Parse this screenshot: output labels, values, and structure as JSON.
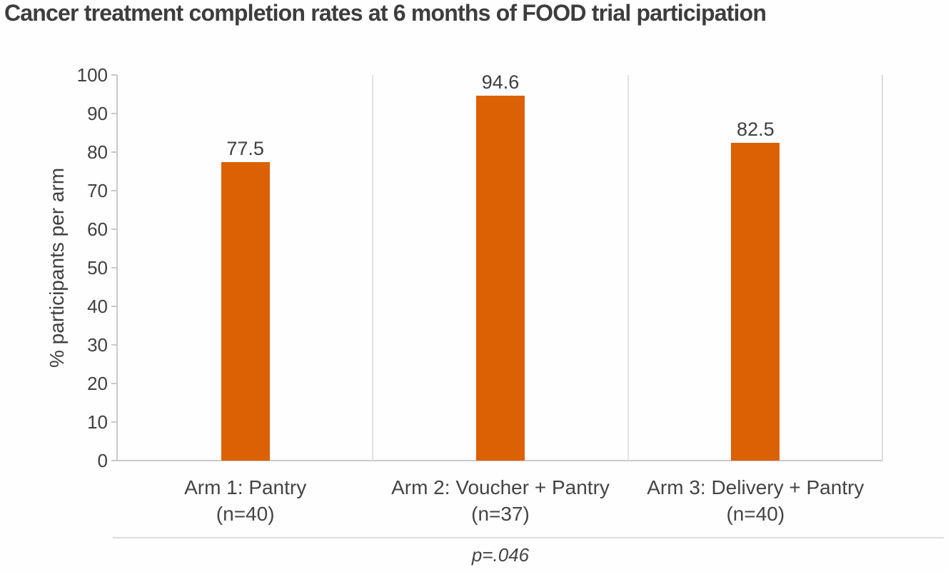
{
  "title": "Cancer treatment completion rates at 6 months of FOOD trial participation",
  "chart_data": {
    "type": "bar",
    "title": "Cancer treatment completion rates at 6 months of FOOD trial participation",
    "categories": [
      "Arm 1: Pantry",
      "Arm 2: Voucher + Pantry",
      "Arm 3: Delivery + Pantry"
    ],
    "category_counts": [
      "(n=40)",
      "(n=37)",
      "(n=40)"
    ],
    "values": [
      77.5,
      94.6,
      82.5
    ],
    "data_labels": [
      "77.5",
      "94.6",
      "82.5"
    ],
    "xlabel": "",
    "ylabel": "% participants per arm",
    "ylim": [
      0,
      100
    ],
    "yticks": [
      0,
      10,
      20,
      30,
      40,
      50,
      60,
      70,
      80,
      90,
      100
    ],
    "grid": "off",
    "legend": "none",
    "category_separators": true,
    "annotation": "p=.046",
    "bar_color": "#dc6104",
    "axis_color": "#c9c9c9",
    "text_color": "#404040",
    "title_color": "#3d3d3d"
  }
}
